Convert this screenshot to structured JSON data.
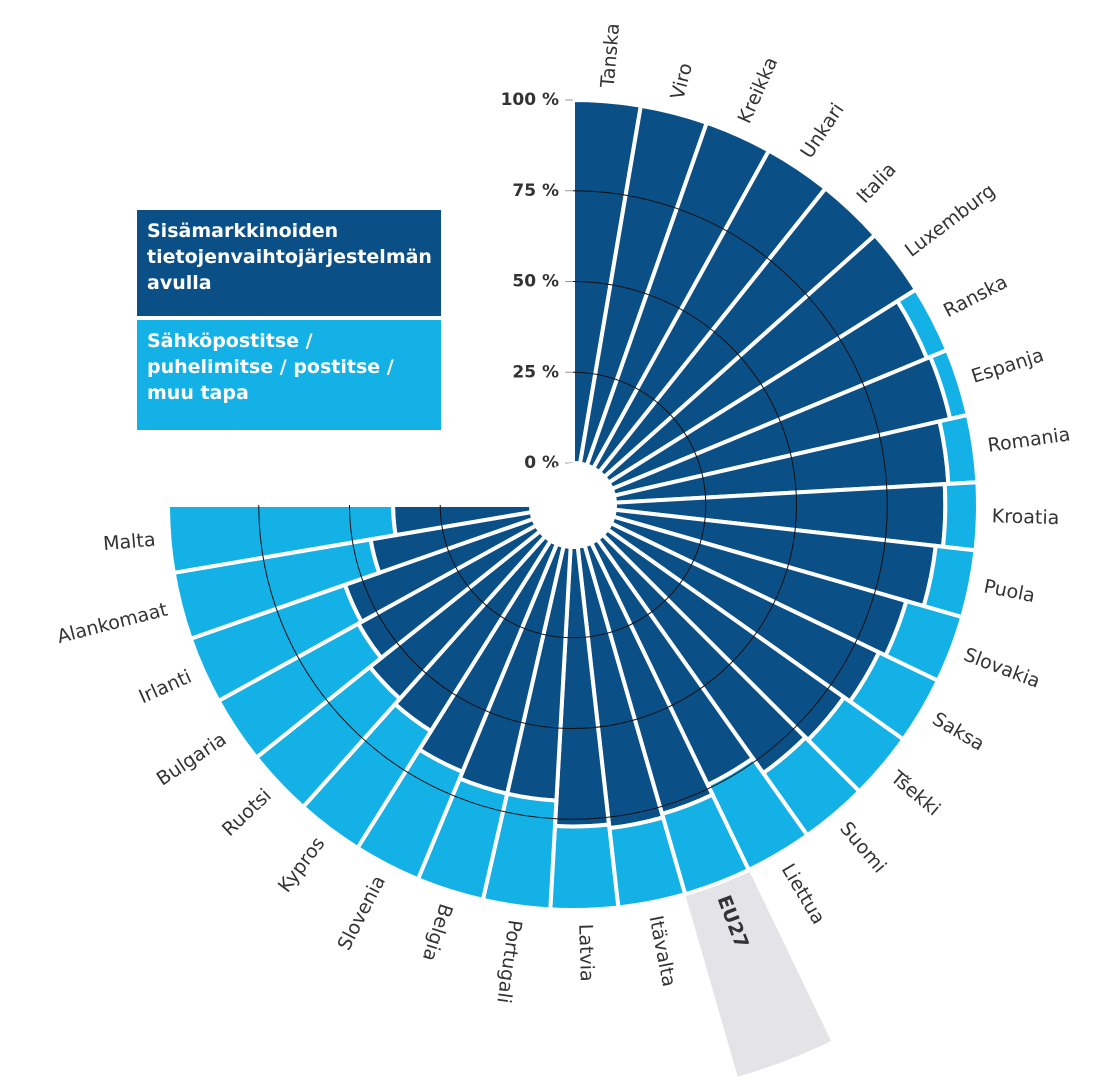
{
  "chart_data": {
    "type": "radial_stacked_bar",
    "categories": [
      "Tanska",
      "Viro",
      "Kreikka",
      "Unkari",
      "Italia",
      "Luxemburg",
      "Ranska",
      "Espanja",
      "Romania",
      "Kroatia",
      "Puola",
      "Slovakia",
      "Saksa",
      "Tšekki",
      "Suomi",
      "Liettua",
      "EU27",
      "Itävalta",
      "Latvia",
      "Portugali",
      "Belgia",
      "Slovenia",
      "Kypros",
      "Ruotsi",
      "Bulgaria",
      "Irlanti",
      "Alankomaat",
      "Malta"
    ],
    "series": [
      {
        "name": "Sisämarkkinoiden tietojenvaihtojärjestelmän avulla",
        "color": "#0b4f87",
        "values": [
          100,
          100,
          100,
          100,
          100,
          100,
          94,
          95,
          92,
          91,
          89,
          84,
          82,
          80,
          79,
          74,
          77,
          78,
          77,
          70,
          70,
          68,
          62,
          60,
          56,
          55,
          45,
          38
        ]
      },
      {
        "name": "Sähköpostitse / puhelimitse / postitse / muu tapa",
        "color": "#14b1e7",
        "values": [
          0,
          0,
          0,
          0,
          0,
          0,
          6,
          5,
          8,
          9,
          11,
          16,
          18,
          20,
          21,
          26,
          23,
          22,
          23,
          30,
          30,
          32,
          38,
          40,
          44,
          45,
          55,
          62
        ]
      }
    ],
    "ylim": [
      0,
      100
    ],
    "yticks": [
      {
        "value": 0,
        "label": "0 %"
      },
      {
        "value": 25,
        "label": "25 %"
      },
      {
        "value": 50,
        "label": "50 %"
      },
      {
        "value": 75,
        "label": "75 %"
      },
      {
        "value": 100,
        "label": "100 %"
      }
    ],
    "grid": true,
    "highlight": "EU27"
  }
}
